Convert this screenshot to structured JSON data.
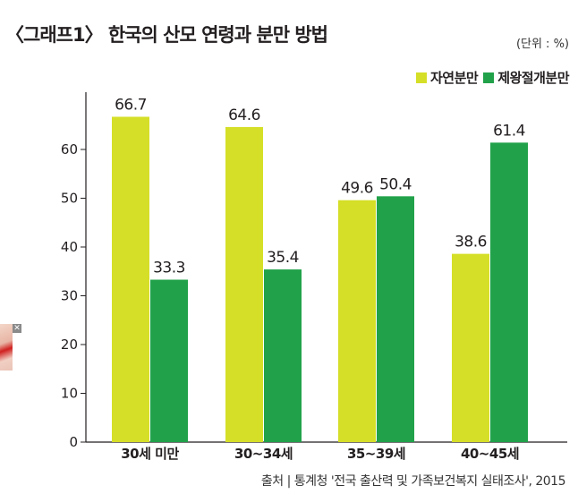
{
  "title": "〈그래프1〉 한국의 산모 연령과 분만 방법",
  "unit_label": "(단위 : %)",
  "source": "출처 | 통계청 '전국 출산력 및 가족보건복지 실태조사', 2015",
  "thumbnail": {
    "close_glyph": "✕"
  },
  "colors": {
    "natural": "#d5df27",
    "cesarean": "#21a24a",
    "axis": "#231f20"
  },
  "chart_data": {
    "type": "bar",
    "categories": [
      "30세 미만",
      "30~34세",
      "35~39세",
      "40~45세"
    ],
    "series": [
      {
        "name": "자연분만",
        "values": [
          66.7,
          64.6,
          49.6,
          38.6
        ]
      },
      {
        "name": "제왕절개분만",
        "values": [
          33.3,
          35.4,
          50.4,
          61.4
        ]
      }
    ],
    "y_ticks": [
      0,
      10,
      20,
      30,
      40,
      50,
      60
    ],
    "ylim": [
      0,
      70
    ],
    "grid": false,
    "legend": "top-right"
  }
}
